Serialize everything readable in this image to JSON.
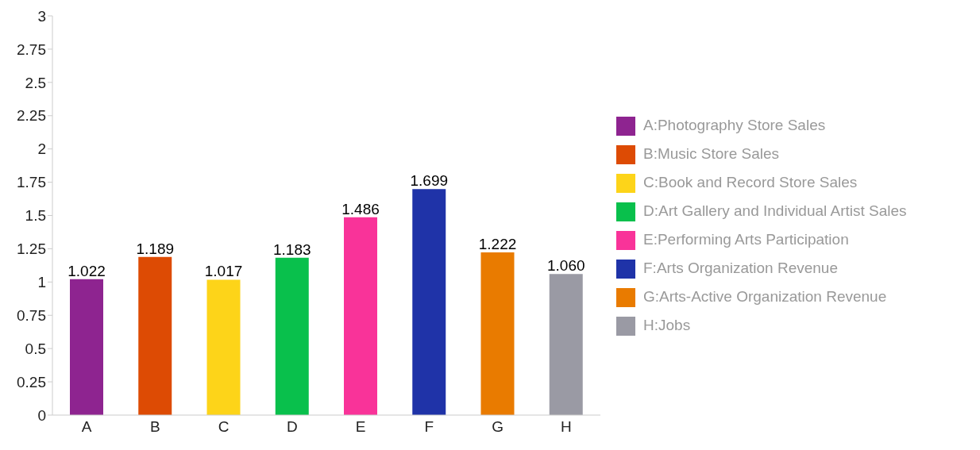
{
  "chart_data": {
    "type": "bar",
    "stacked": true,
    "categories": [
      "A",
      "B",
      "C",
      "D",
      "E",
      "F",
      "G",
      "H"
    ],
    "series": [
      {
        "name": "A:Photography Store Sales",
        "color": "#8e2490",
        "values": [
          1.022,
          null,
          null,
          null,
          null,
          null,
          null,
          null
        ],
        "value_labels": [
          "1.022",
          null,
          null,
          null,
          null,
          null,
          null,
          null
        ]
      },
      {
        "name": "B:Music Store Sales",
        "color": "#dd4b04",
        "values": [
          null,
          1.189,
          null,
          null,
          null,
          null,
          null,
          null
        ],
        "value_labels": [
          null,
          "1.189",
          null,
          null,
          null,
          null,
          null,
          null
        ]
      },
      {
        "name": "C:Book and Record Store Sales",
        "color": "#fdd419",
        "values": [
          null,
          null,
          1.017,
          null,
          null,
          null,
          null,
          null
        ],
        "value_labels": [
          null,
          null,
          "1.017",
          null,
          null,
          null,
          null,
          null
        ]
      },
      {
        "name": "D:Art Gallery and Individual Artist Sales",
        "color": "#09c04c",
        "values": [
          null,
          null,
          null,
          1.183,
          null,
          null,
          null,
          null
        ],
        "value_labels": [
          null,
          null,
          null,
          "1.183",
          null,
          null,
          null,
          null
        ]
      },
      {
        "name": "E:Performing Arts Participation",
        "color": "#f93399",
        "values": [
          null,
          null,
          null,
          null,
          1.486,
          null,
          null,
          null
        ],
        "value_labels": [
          null,
          null,
          null,
          null,
          "1.486",
          null,
          null,
          null
        ]
      },
      {
        "name": "F:Arts Organization Revenue",
        "color": "#1f33a8",
        "values": [
          null,
          null,
          null,
          null,
          null,
          1.699,
          null,
          null
        ],
        "value_labels": [
          null,
          null,
          null,
          null,
          null,
          "1.699",
          null,
          null
        ]
      },
      {
        "name": "G:Arts-Active Organization Revenue",
        "color": "#e97b00",
        "values": [
          null,
          null,
          null,
          null,
          null,
          null,
          1.222,
          null
        ],
        "value_labels": [
          null,
          null,
          null,
          null,
          null,
          null,
          "1.222",
          null
        ]
      },
      {
        "name": "H:Jobs",
        "color": "#9a9aa4",
        "values": [
          null,
          null,
          null,
          null,
          null,
          null,
          null,
          1.06
        ],
        "value_labels": [
          null,
          null,
          null,
          null,
          null,
          null,
          null,
          "1.060"
        ]
      }
    ],
    "ylim": [
      0,
      3
    ],
    "yticks": [
      0,
      0.25,
      0.5,
      0.75,
      1,
      1.25,
      1.5,
      1.75,
      2,
      2.25,
      2.5,
      2.75,
      3
    ],
    "grid": false,
    "legend": "right"
  }
}
